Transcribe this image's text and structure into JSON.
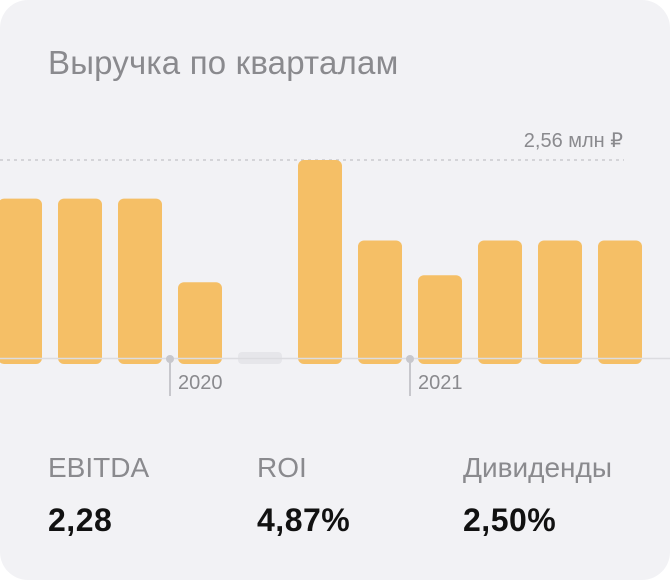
{
  "card": {
    "title": "Выручка по кварталам"
  },
  "chart_data": {
    "type": "bar",
    "reference_label": "2,56 млн ₽",
    "reference_value": 2.56,
    "ylim": [
      0,
      2.56
    ],
    "values": [
      2.06,
      2.06,
      2.06,
      0.98,
      0.0,
      2.56,
      1.52,
      1.07,
      1.52,
      1.52,
      1.52
    ],
    "year_markers": [
      {
        "label": "2020",
        "after_index": 2
      },
      {
        "label": "2021",
        "after_index": 6
      }
    ],
    "grid": false
  },
  "metrics": [
    {
      "label": "EBITDA",
      "value": "2,28"
    },
    {
      "label": "ROI",
      "value": "4,87%"
    },
    {
      "label": "Дивиденды",
      "value": "2,50%"
    }
  ],
  "colors": {
    "bar": "#f5bf66",
    "empty_bar": "#e6e6ea",
    "axis": "#dcdce0",
    "marker": "#c7c7cc",
    "card_bg": "#f2f2f5"
  }
}
